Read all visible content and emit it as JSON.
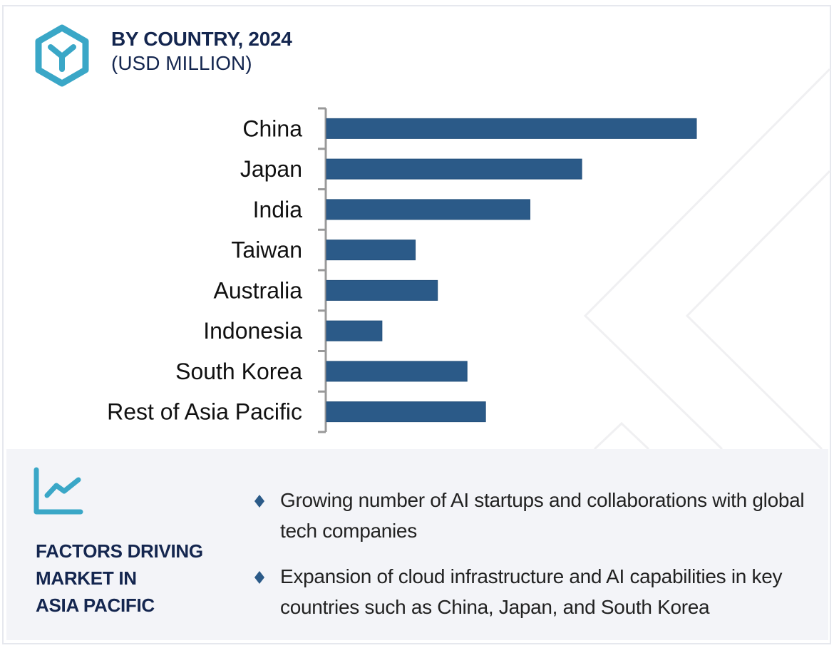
{
  "header": {
    "icon": "hexagon-logo-icon",
    "title": "BY COUNTRY, 2024",
    "subtitle": "(USD MILLION)"
  },
  "colors": {
    "bar": "#2b5a88",
    "accent": "#3aa7c7",
    "heading": "#14264f",
    "panel_bg": "#f3f4f8",
    "axis": "#999999"
  },
  "chart_data": {
    "type": "bar",
    "orientation": "horizontal",
    "title": "BY COUNTRY, 2024",
    "subtitle": "(USD MILLION)",
    "xlabel": "",
    "ylabel": "",
    "value_note": "No value axis or data labels shown; values are relative estimates (China = 100)",
    "categories": [
      "China",
      "Japan",
      "India",
      "Taiwan",
      "Australia",
      "Indonesia",
      "South Korea",
      "Rest of Asia Pacific"
    ],
    "values": [
      100,
      69,
      55,
      24,
      30,
      15,
      38,
      43
    ],
    "xlim": [
      0,
      100
    ],
    "grid": false,
    "legend": "none"
  },
  "factors": {
    "icon": "trend-chart-icon",
    "heading_lines": [
      "FACTORS DRIVING",
      "MARKET IN",
      "ASIA PACIFIC"
    ],
    "bullet_icon": "diamond-bullet-icon",
    "items": [
      "Growing number of AI startups and collaborations with global tech companies",
      "Expansion of cloud infrastructure and AI capabilities in key countries such as China, Japan, and South Korea"
    ]
  }
}
